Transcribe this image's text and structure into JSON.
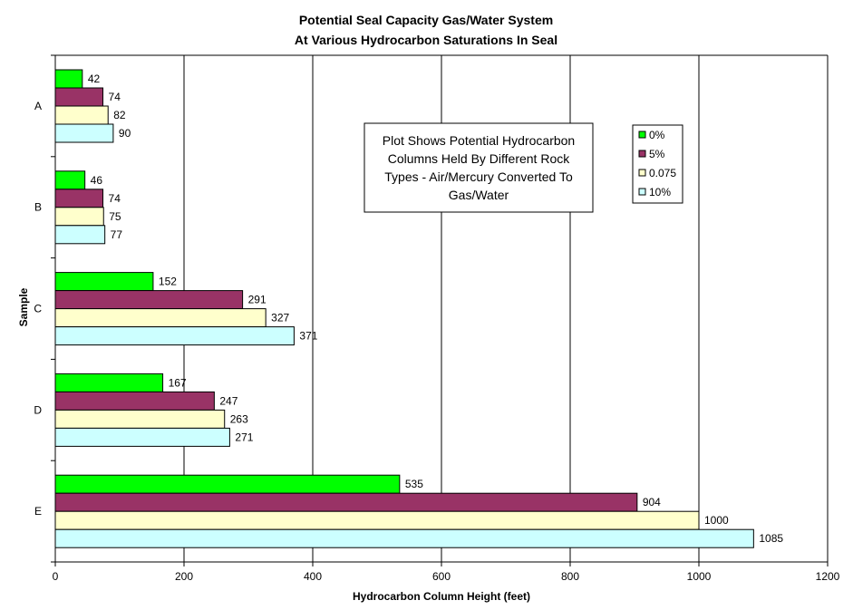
{
  "chart_data": {
    "type": "bar",
    "orientation": "horizontal",
    "title": "Potential Seal Capacity Gas/Water System",
    "subtitle": "At Various Hydrocarbon Saturations In Seal",
    "xlabel": "Hydrocarbon Column Height (feet)",
    "ylabel": "Sample",
    "xlim": [
      0,
      1200
    ],
    "xticks": [
      "0",
      "200",
      "400",
      "600",
      "800",
      "1000",
      "1200"
    ],
    "grid": "vertical",
    "categories": [
      "A",
      "B",
      "C",
      "D",
      "E"
    ],
    "series": [
      {
        "name": "0%",
        "color": "#00ff00",
        "values": [
          42,
          46,
          152,
          167,
          535
        ]
      },
      {
        "name": "5%",
        "color": "#993366",
        "values": [
          74,
          74,
          291,
          247,
          904
        ]
      },
      {
        "name": "0.075",
        "color": "#ffffcc",
        "values": [
          82,
          75,
          327,
          263,
          1000
        ]
      },
      {
        "name": "10%",
        "color": "#ccffff",
        "values": [
          90,
          77,
          371,
          271,
          1085
        ]
      }
    ],
    "data_labels": [
      [
        "42",
        "46",
        "152",
        "167",
        "535"
      ],
      [
        "74",
        "74",
        "291",
        "247",
        "904"
      ],
      [
        "82",
        "75",
        "327",
        "263",
        "1000"
      ],
      [
        "90",
        "77",
        "371",
        "271",
        "1085"
      ]
    ],
    "annotation": "Plot Shows Potential Hydrocarbon Columns Held By Different Rock Types - Air/Mercury Converted To Gas/Water",
    "annotation_lines": [
      "Plot Shows Potential Hydrocarbon",
      "Columns Held By Different Rock",
      "Types - Air/Mercury Converted To",
      "Gas/Water"
    ],
    "legend_position": "top-right (inside plot)"
  }
}
